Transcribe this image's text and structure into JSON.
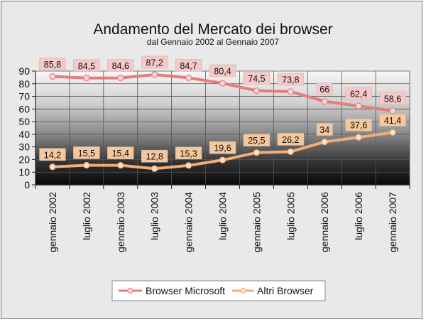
{
  "chart_data": {
    "type": "line",
    "title": "Andamento del Mercato dei browser",
    "subtitle": "dal Gennaio 2002 al Gennaio 2007",
    "categories": [
      "gennaio 2002",
      "luglio 2002",
      "gennaio 2003",
      "luglio 2003",
      "gennaio 2004",
      "luglio 2004",
      "gennaio 2005",
      "luglio 2005",
      "gennaio 2006",
      "luglio 2006",
      "gennaio 2007"
    ],
    "series": [
      {
        "name": "Browser Microsoft",
        "values": [
          85.8,
          84.5,
          84.6,
          87.2,
          84.7,
          80.4,
          74.5,
          73.8,
          66,
          62.4,
          58.6
        ],
        "labels": [
          "85,8",
          "84,5",
          "84,6",
          "87,2",
          "84,7",
          "80,4",
          "74,5",
          "73,8",
          "66",
          "62,4",
          "58,6"
        ],
        "color": "#e87b7b",
        "label_bg": "#f7c8c8",
        "marker_fill": "#f8d7d7"
      },
      {
        "name": "Altri Browser",
        "values": [
          14.2,
          15.5,
          15.4,
          12.8,
          15.3,
          19.6,
          25.5,
          26.2,
          34,
          37.6,
          41.4
        ],
        "labels": [
          "14,2",
          "15,5",
          "15,4",
          "12,8",
          "15,3",
          "19,6",
          "25,5",
          "26,2",
          "34",
          "37,6",
          "41,4"
        ],
        "color": "#f2ad78",
        "label_bg": "#f5c79c",
        "marker_fill": "#fbe1c8"
      }
    ],
    "ylim": [
      0,
      90
    ],
    "yticks": [
      0,
      10,
      20,
      30,
      40,
      50,
      60,
      70,
      80,
      90
    ],
    "grid": true,
    "legend_position": "bottom"
  }
}
